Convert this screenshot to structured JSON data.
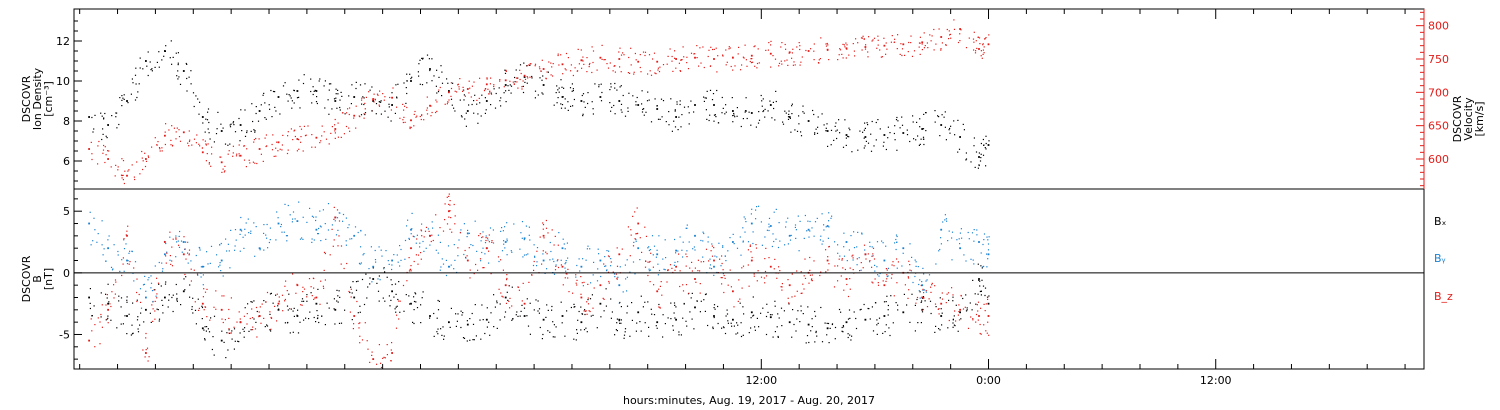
{
  "colors": {
    "black": "#000000",
    "blue": "#1a82d2",
    "red": "#e41b17",
    "axis": "#000000"
  },
  "chart_data": [
    {
      "type": "scatter",
      "panel": "top",
      "ylabel_lines": [
        "DSCOVR",
        "Ion Density",
        "[cm⁻³]"
      ],
      "ylim": [
        4.6,
        13.6
      ],
      "yticks": [
        6,
        8,
        10,
        12
      ],
      "ylabel_right_lines": [
        "DSCOVR",
        "Velocity",
        "[km/s]"
      ],
      "ylim_right": [
        555,
        825
      ],
      "yticks_right": [
        600,
        650,
        700,
        750,
        800
      ],
      "series": [
        {
          "axis": "left",
          "color": "#000000",
          "x": [
            -23.5,
            -22.5,
            -21.5,
            -20.5,
            -19.5,
            -18.5,
            -17.5,
            -16.5,
            -15.5,
            -14.5,
            -13.5,
            -12.5,
            -11.5,
            -10.5,
            -9.5,
            -8.5,
            -7.5,
            -6.5,
            -5.5,
            -4.5,
            -3.5,
            -2.5,
            -1.5,
            -0.5,
            0.5,
            1.5,
            2.5,
            3.5,
            4.5,
            5.5,
            6.5,
            7.5,
            8.5,
            9.5,
            10.5,
            11.5,
            12.5,
            13.5,
            14.5,
            15.5,
            16.5,
            17.5,
            18.5,
            19.5,
            20.5,
            21.5,
            22.5,
            23.5,
            24.0
          ],
          "values": [
            8.2,
            7.8,
            9.0,
            11.0,
            11.5,
            10.5,
            8.2,
            7.5,
            7.8,
            8.5,
            9.2,
            9.5,
            9.5,
            9.0,
            9.2,
            9.0,
            8.8,
            10.0,
            10.6,
            9.5,
            8.5,
            9.0,
            9.8,
            10.2,
            9.8,
            9.2,
            9.0,
            9.2,
            9.0,
            8.8,
            8.6,
            8.2,
            8.8,
            8.8,
            8.5,
            8.4,
            8.8,
            8.2,
            8.0,
            7.5,
            7.3,
            7.2,
            7.3,
            7.4,
            7.6,
            7.8,
            7.2,
            6.2,
            6.8
          ]
        },
        {
          "axis": "right",
          "color": "#e41b17",
          "x": [
            -23.5,
            -22.5,
            -21.5,
            -20.5,
            -19.5,
            -18.5,
            -17.5,
            -16.5,
            -15.5,
            -14.5,
            -13.5,
            -12.5,
            -11.5,
            -10.5,
            -9.5,
            -8.5,
            -7.5,
            -6.5,
            -5.5,
            -4.5,
            -3.5,
            -2.5,
            -1.5,
            -0.5,
            0.5,
            1.5,
            2.5,
            3.5,
            4.5,
            5.5,
            6.5,
            7.5,
            8.5,
            9.5,
            10.5,
            11.5,
            12.5,
            13.5,
            14.5,
            15.5,
            16.5,
            17.5,
            18.5,
            19.5,
            20.5,
            21.5,
            22.5,
            23.5,
            24.0
          ],
          "values": [
            615,
            600,
            575,
            600,
            635,
            640,
            610,
            595,
            605,
            615,
            625,
            630,
            632,
            645,
            665,
            690,
            692,
            658,
            680,
            700,
            705,
            712,
            718,
            725,
            735,
            742,
            748,
            752,
            750,
            746,
            746,
            750,
            752,
            750,
            752,
            755,
            758,
            760,
            762,
            764,
            766,
            768,
            770,
            772,
            775,
            783,
            795,
            765,
            772
          ]
        }
      ],
      "xlim": [
        -24.3,
        47.0
      ]
    },
    {
      "type": "scatter",
      "panel": "bottom",
      "ylabel_lines": [
        "DSCOVR",
        "B",
        "[nT]"
      ],
      "ylim": [
        -7.8,
        6.8
      ],
      "yticks": [
        -5,
        0,
        5
      ],
      "zero_line": true,
      "legend": [
        "Bₓ",
        "Bᵧ",
        "B_z"
      ],
      "legend_placement": "right",
      "series": [
        {
          "name": "Bₓ",
          "color": "#000000",
          "x": [
            -23.5,
            -22.5,
            -21.5,
            -20.5,
            -19.5,
            -18.5,
            -17.5,
            -16.5,
            -15.5,
            -14.5,
            -13.5,
            -12.5,
            -11.5,
            -10.5,
            -9.5,
            -8.5,
            -7.5,
            -6.5,
            -5.5,
            -4.5,
            -3.5,
            -2.5,
            -1.5,
            -0.5,
            0.5,
            1.5,
            2.5,
            3.5,
            4.5,
            5.5,
            6.5,
            7.5,
            8.5,
            9.5,
            10.5,
            11.5,
            12.5,
            13.5,
            14.5,
            15.5,
            16.5,
            17.5,
            18.5,
            19.5,
            20.5,
            21.5,
            22.5,
            23.5,
            24.0
          ],
          "values": [
            -2.0,
            -2.5,
            -3.5,
            -3.0,
            -2.0,
            -1.5,
            -4.5,
            -5.5,
            -4.0,
            -3.5,
            -3.0,
            -3.5,
            -2.5,
            -3.0,
            -2.0,
            -0.5,
            -1.5,
            -2.5,
            -3.5,
            -4.0,
            -4.2,
            -3.8,
            -2.0,
            -3.5,
            -3.8,
            -3.5,
            -4.0,
            -2.5,
            -3.8,
            -3.2,
            -4.0,
            -3.8,
            -2.8,
            -3.5,
            -3.8,
            -3.2,
            -3.6,
            -4.0,
            -4.2,
            -4.5,
            -4.0,
            -3.8,
            -3.5,
            -3.2,
            -3.0,
            -3.5,
            -3.2,
            -0.5,
            -2.5
          ]
        },
        {
          "name": "Bᵧ",
          "color": "#1a82d2",
          "x": [
            -23.5,
            -22.5,
            -21.5,
            -20.5,
            -19.5,
            -18.5,
            -17.5,
            -16.5,
            -15.5,
            -14.5,
            -13.5,
            -12.5,
            -11.5,
            -10.5,
            -9.5,
            -8.5,
            -7.5,
            -6.5,
            -5.5,
            -4.5,
            -3.5,
            -2.5,
            -1.5,
            -0.5,
            0.5,
            1.5,
            2.5,
            3.5,
            4.5,
            5.5,
            6.5,
            7.5,
            8.5,
            9.5,
            10.5,
            11.5,
            12.5,
            13.5,
            14.5,
            15.5,
            16.5,
            17.5,
            18.5,
            19.5,
            20.5,
            21.5,
            22.5,
            23.5,
            24.0
          ],
          "values": [
            4.0,
            2.0,
            1.0,
            -2.0,
            1.5,
            2.5,
            0.5,
            1.0,
            3.5,
            2.0,
            4.0,
            4.2,
            3.5,
            4.5,
            3.0,
            0.5,
            1.0,
            3.5,
            3.0,
            0.5,
            3.2,
            2.0,
            2.5,
            2.8,
            1.0,
            2.0,
            0.5,
            1.0,
            -1.0,
            2.0,
            1.5,
            1.8,
            3.0,
            0.5,
            2.5,
            4.0,
            3.8,
            3.0,
            3.5,
            3.8,
            2.5,
            1.5,
            1.0,
            2.0,
            -1.0,
            3.5,
            2.0,
            2.5,
            1.5
          ]
        },
        {
          "name": "B_z",
          "color": "#e41b17",
          "x": [
            -23.5,
            -22.5,
            -21.5,
            -20.5,
            -19.5,
            -18.5,
            -17.5,
            -16.5,
            -15.5,
            -14.5,
            -13.5,
            -12.5,
            -11.5,
            -10.5,
            -9.5,
            -8.5,
            -7.5,
            -6.5,
            -5.5,
            -4.5,
            -3.5,
            -2.5,
            -1.5,
            -0.5,
            0.5,
            1.5,
            2.5,
            3.5,
            4.5,
            5.5,
            6.5,
            7.5,
            8.5,
            9.5,
            10.5,
            11.5,
            12.5,
            13.5,
            14.5,
            15.5,
            16.5,
            17.5,
            18.5,
            19.5,
            20.5,
            21.5,
            22.5,
            23.5,
            24.0
          ],
          "values": [
            -5.5,
            -3.0,
            3.0,
            -6.5,
            2.5,
            1.5,
            -2.5,
            -3.0,
            -4.0,
            -3.5,
            -2.5,
            -1.0,
            -2.0,
            4.5,
            -3.5,
            -7.0,
            -6.5,
            2.0,
            3.0,
            5.0,
            1.0,
            2.0,
            -1.0,
            -2.5,
            3.0,
            0.5,
            -2.0,
            -1.0,
            1.5,
            4.0,
            -1.5,
            0.5,
            -0.5,
            1.0,
            -1.5,
            1.0,
            0.5,
            -1.0,
            0.0,
            1.0,
            -0.5,
            1.5,
            -1.0,
            0.0,
            -2.0,
            -2.5,
            -3.0,
            -3.5,
            -3.5
          ]
        }
      ],
      "xlim": [
        -24.3,
        47.0
      ]
    }
  ],
  "xaxis": {
    "label": "hours:minutes, Aug. 19, 2017 - Aug. 20, 2017",
    "major_ticks": [
      {
        "x": 12,
        "label": "12:00"
      },
      {
        "x": 24,
        "label": "0:00"
      },
      {
        "x": 36,
        "label": "12:00"
      }
    ],
    "minor_step": 2
  }
}
